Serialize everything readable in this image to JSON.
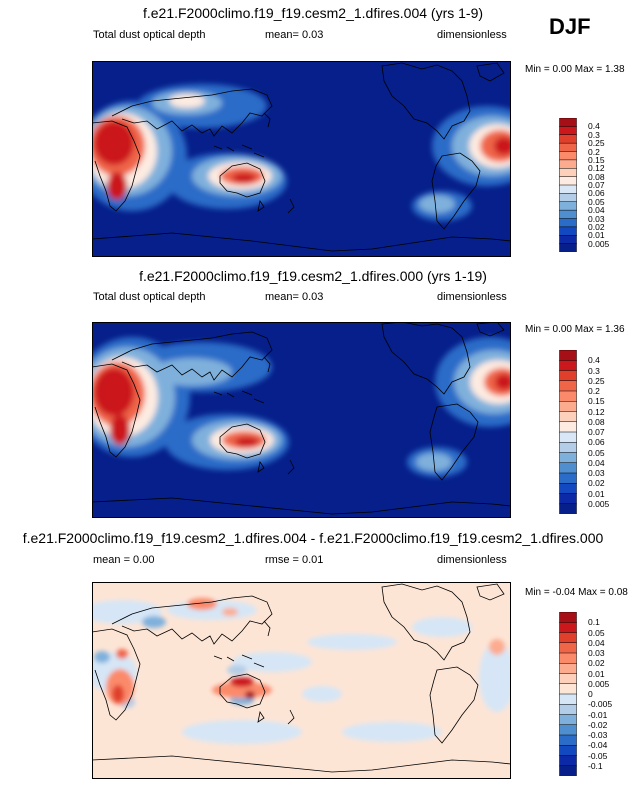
{
  "season": "DJF",
  "panels": [
    {
      "title": "f.e21.F2000climo.f19_f19.cesm2_1.dfires.004 (yrs 1-9)",
      "left_label": "Total dust optical depth",
      "mean_text": "mean=  0.03",
      "units": "dimensionless",
      "minmax": "Min =  0.00 Max =  1.38",
      "colorbar": {
        "labels": [
          "0.4",
          "0.3",
          "0.25",
          "0.2",
          "0.15",
          "0.12",
          "0.08",
          "0.07",
          "0.06",
          "0.05",
          "0.04",
          "0.03",
          "0.02",
          "0.01",
          "0.005"
        ],
        "colors": [
          "#a50f15",
          "#cb181d",
          "#e0402b",
          "#ef6548",
          "#fb8a6a",
          "#fcab8f",
          "#fdd0bc",
          "#fdebe1",
          "#d9e6f5",
          "#b3cde8",
          "#7fb0dc",
          "#4f8fd0",
          "#2a6cc8",
          "#1349c0",
          "#0c2aa8",
          "#061f8a"
        ]
      }
    },
    {
      "title": "f.e21.F2000climo.f19_f19.cesm2_1.dfires.000 (yrs 1-19)",
      "left_label": "Total dust optical depth",
      "mean_text": "mean=  0.03",
      "units": "dimensionless",
      "minmax": "Min =  0.00 Max =  1.36",
      "colorbar": {
        "labels": [
          "0.4",
          "0.3",
          "0.25",
          "0.2",
          "0.15",
          "0.12",
          "0.08",
          "0.07",
          "0.06",
          "0.05",
          "0.04",
          "0.03",
          "0.02",
          "0.01",
          "0.005"
        ],
        "colors": [
          "#a50f15",
          "#cb181d",
          "#e0402b",
          "#ef6548",
          "#fb8a6a",
          "#fcab8f",
          "#fdd0bc",
          "#fdebe1",
          "#d9e6f5",
          "#b3cde8",
          "#7fb0dc",
          "#4f8fd0",
          "#2a6cc8",
          "#1349c0",
          "#0c2aa8",
          "#061f8a"
        ]
      }
    },
    {
      "title": "f.e21.F2000climo.f19_f19.cesm2_1.dfires.004 - f.e21.F2000climo.f19_f19.cesm2_1.dfires.000",
      "left_label": "mean =   0.00",
      "mean_text": "rmse =  0.01",
      "units": "dimensionless",
      "minmax": "Min = -0.04 Max =  0.08",
      "colorbar": {
        "labels": [
          "0.1",
          "0.05",
          "0.04",
          "0.03",
          "0.02",
          "0.01",
          "0.005",
          "0",
          "-0.005",
          "-0.01",
          "-0.02",
          "-0.03",
          "-0.04",
          "-0.05",
          "-0.1"
        ],
        "colors": [
          "#a50f15",
          "#cb181d",
          "#e0402b",
          "#ef6548",
          "#fb8a6a",
          "#fcab8f",
          "#fdd0bc",
          "#fde5d6",
          "#d6e6f6",
          "#b3cde8",
          "#7fb0dc",
          "#4f8fd0",
          "#2a6cc8",
          "#1349c0",
          "#0c2aa8",
          "#061f8a"
        ]
      }
    }
  ]
}
